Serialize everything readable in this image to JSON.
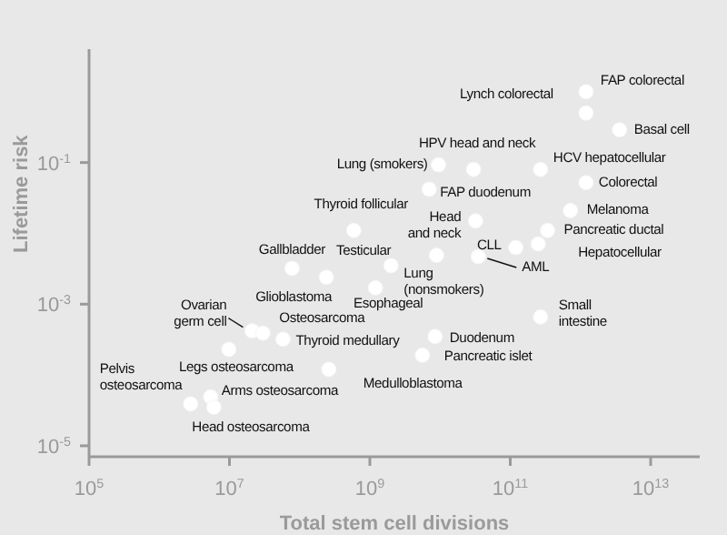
{
  "chart_data": {
    "type": "scatter",
    "xlabel": "Total stem cell divisions",
    "ylabel": "Lifetime risk",
    "log": "xy",
    "marker": "circle",
    "xlim": [
      100000.0,
      50000000000000.0
    ],
    "ylim": [
      7e-06,
      4
    ],
    "xticks": [
      {
        "value": 100000.0,
        "label": "10$^{5}$"
      },
      {
        "value": 10000000.0,
        "label": "10$^{7}$"
      },
      {
        "value": 1000000000.0,
        "label": "10$^{9}$"
      },
      {
        "value": 100000000000.0,
        "label": "10$^{11}$"
      },
      {
        "value": 10000000000000.0,
        "label": "10$^{13}$"
      }
    ],
    "yticks": [
      {
        "value": 1e-05,
        "label": "10$^{-5}$"
      },
      {
        "value": 0.001,
        "label": "10$^{-3}$"
      },
      {
        "value": 0.1,
        "label": "10$^{-1}$"
      }
    ],
    "series": [
      {
        "color": "#ffffff",
        "x": [
          1200000000000.0,
          1200000000000.0,
          3600000000000.0,
          30000000000.0,
          270000000000.0,
          9500000000.0,
          1200000000000.0,
          7000000000.0,
          720000000000.0,
          32000000000.0,
          340000000000.0,
          590000000.0,
          120000000000.0,
          250000000000.0,
          35000000000.0,
          8900000000.0,
          78000000.0,
          2000000000.0,
          1200000000.0,
          240000000.0,
          21000000.0,
          30000000.0,
          58000000.0,
          8500000000.0,
          5600000000.0,
          270000000000.0,
          9800000.0,
          260000000.0,
          5400000.0,
          2800000.0,
          6000000.0
        ],
        "values": [
          1,
          0.5,
          0.29,
          0.08,
          0.08,
          0.093,
          0.052,
          0.042,
          0.021,
          0.015,
          0.011,
          0.011,
          0.0063,
          0.0071,
          0.0047,
          0.0049,
          0.0032,
          0.0035,
          0.0017,
          0.0024,
          0.00042,
          0.00039,
          0.00032,
          0.00035,
          0.00019,
          0.00066,
          0.00023,
          0.00012,
          4.9e-05,
          3.9e-05,
          3.5e-05
        ]
      }
    ],
    "annotations": [
      {
        "text": "FAP colorectal",
        "x": 1200000000000.0,
        "y": 1
      },
      {
        "text": "Lynch colorectal",
        "x": 1200000000000.0,
        "y": 0.5
      },
      {
        "text": "Basal cell",
        "x": 3600000000000.0,
        "y": 0.29
      },
      {
        "text": "HPV head and neck",
        "x": 30000000000.0,
        "y": 0.08
      },
      {
        "text": "HCV hepatocellular",
        "x": 270000000000.0,
        "y": 0.08
      },
      {
        "text": "Lung (smokers)",
        "x": 9500000000.0,
        "y": 0.093
      },
      {
        "text": "Colorectal",
        "x": 1200000000000.0,
        "y": 0.052
      },
      {
        "text": "FAP duodenum",
        "x": 7000000000.0,
        "y": 0.042
      },
      {
        "text": "Melanoma",
        "x": 720000000000.0,
        "y": 0.021
      },
      {
        "text": "Head and neck",
        "x": 32000000000.0,
        "y": 0.015
      },
      {
        "text": "Pancreatic ductal",
        "x": 340000000000.0,
        "y": 0.011
      },
      {
        "text": "Thyroid follicular",
        "x": 590000000.0,
        "y": 0.011
      },
      {
        "text": "CLL",
        "x": 120000000000.0,
        "y": 0.0063
      },
      {
        "text": "Hepatocellular",
        "x": 250000000000.0,
        "y": 0.0071
      },
      {
        "text": "AML",
        "x": 35000000000.0,
        "y": 0.0047
      },
      {
        "text": "Lung (nonsmokers)",
        "x": 8900000000.0,
        "y": 0.0049
      },
      {
        "text": "Gallbladder",
        "x": 78000000.0,
        "y": 0.0032
      },
      {
        "text": "Testicular",
        "x": 2000000000.0,
        "y": 0.0035
      },
      {
        "text": "Esophageal",
        "x": 1200000000.0,
        "y": 0.0017
      },
      {
        "text": "Glioblastoma",
        "x": 240000000.0,
        "y": 0.0024
      },
      {
        "text": "Ovarian germ cell",
        "x": 21000000.0,
        "y": 0.00042
      },
      {
        "text": "Osteosarcoma",
        "x": 30000000.0,
        "y": 0.00039
      },
      {
        "text": "Thyroid medullary",
        "x": 58000000.0,
        "y": 0.00032
      },
      {
        "text": "Duodenum",
        "x": 8500000000.0,
        "y": 0.00035
      },
      {
        "text": "Pancreatic islet",
        "x": 5600000000.0,
        "y": 0.00019
      },
      {
        "text": "Small intestine",
        "x": 270000000000.0,
        "y": 0.00066
      },
      {
        "text": "Legs osteosarcoma",
        "x": 9800000.0,
        "y": 0.00023
      },
      {
        "text": "Medulloblastoma",
        "x": 260000000.0,
        "y": 0.00012
      },
      {
        "text": "Arms osteosarcoma",
        "x": 5400000.0,
        "y": 4.9e-05
      },
      {
        "text": "Pelvis osteosarcoma",
        "x": 2800000.0,
        "y": 3.9e-05
      },
      {
        "text": "Head osteosarcoma",
        "x": 6000000.0,
        "y": 3.5e-05
      }
    ]
  }
}
